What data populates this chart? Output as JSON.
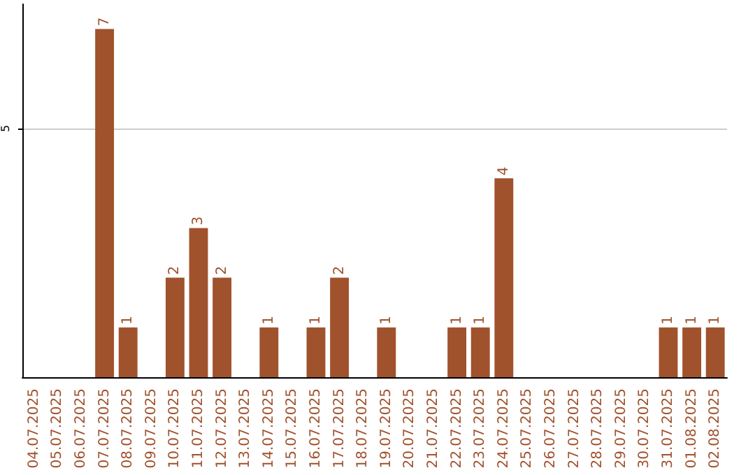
{
  "chart_data": {
    "type": "bar",
    "categories": [
      "04.07.2025",
      "05.07.2025",
      "06.07.2025",
      "07.07.2025",
      "08.07.2025",
      "09.07.2025",
      "10.07.2025",
      "11.07.2025",
      "12.07.2025",
      "13.07.2025",
      "14.07.2025",
      "15.07.2025",
      "16.07.2025",
      "17.07.2025",
      "18.07.2025",
      "19.07.2025",
      "20.07.2025",
      "21.07.2025",
      "22.07.2025",
      "23.07.2025",
      "24.07.2025",
      "25.07.2025",
      "26.07.2025",
      "27.07.2025",
      "28.07.2025",
      "29.07.2025",
      "30.07.2025",
      "31.07.2025",
      "01.08.2025",
      "02.08.2025"
    ],
    "values": [
      0,
      0,
      0,
      7,
      1,
      0,
      2,
      3,
      2,
      0,
      1,
      0,
      1,
      2,
      0,
      1,
      0,
      0,
      1,
      1,
      4,
      0,
      0,
      0,
      0,
      0,
      0,
      1,
      1,
      1
    ],
    "value_labels": [
      null,
      null,
      null,
      "7",
      "1",
      null,
      "2",
      "3",
      "2",
      null,
      "1",
      null,
      "1",
      "2",
      null,
      "1",
      null,
      null,
      "1",
      "1",
      "4",
      null,
      null,
      null,
      null,
      null,
      null,
      "1",
      "1",
      "1"
    ],
    "color": "#a0522d",
    "ylim": [
      0,
      7.5
    ],
    "yticks": [
      5
    ],
    "grid": "y"
  }
}
